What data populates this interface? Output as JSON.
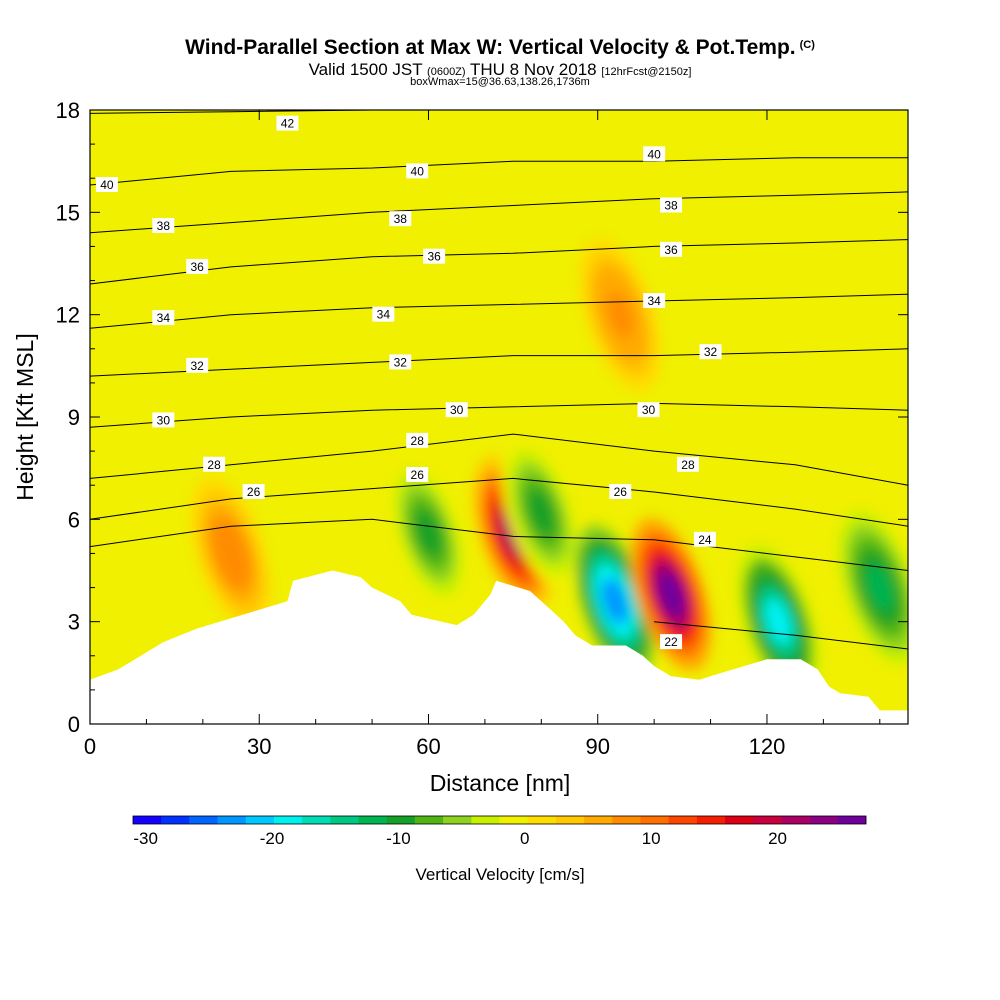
{
  "title": {
    "main": "Wind-Parallel Section at Max W: Vertical Velocity & Pot.Temp.",
    "copyright": "(C)",
    "valid_prefix": "Valid 1500 JST",
    "valid_z": "(0600Z)",
    "valid_date": "THU 8 Nov 2018",
    "forecast": "[12hrFcst@2150z]",
    "box": "boxWmax=15@36.63,138.26,1736m"
  },
  "chart_data": {
    "type": "heatmap",
    "xlabel": "Distance [nm]",
    "ylabel": "Height [Kft MSL]",
    "xlim": [
      0,
      145
    ],
    "ylim": [
      0,
      18
    ],
    "x_ticks": [
      0,
      30,
      60,
      90,
      120
    ],
    "y_ticks": [
      0,
      3,
      6,
      9,
      12,
      15,
      18
    ],
    "colorbar": {
      "label": "Vertical Velocity [cm/s]",
      "ticks": [
        -30,
        -20,
        -10,
        0,
        10,
        20
      ],
      "range": [
        -31,
        27
      ],
      "colors": [
        "#1400ff",
        "#0032ff",
        "#0064ff",
        "#0096ff",
        "#00c8ff",
        "#00f0f0",
        "#00dcb4",
        "#00c882",
        "#00b450",
        "#14a028",
        "#50b414",
        "#8cd21e",
        "#c8f000",
        "#f0f000",
        "#ffdc00",
        "#ffc800",
        "#ffaa00",
        "#ff8c00",
        "#ff6e00",
        "#ff4600",
        "#f51e00",
        "#dc0014",
        "#c8003c",
        "#aa0064",
        "#8c0082",
        "#6e009b"
      ]
    },
    "terrain_kft": [
      [
        0,
        1.3
      ],
      [
        5,
        1.6
      ],
      [
        8,
        1.9
      ],
      [
        10,
        2.1
      ],
      [
        13,
        2.4
      ],
      [
        16,
        2.6
      ],
      [
        19,
        2.8
      ],
      [
        35,
        3.6
      ],
      [
        36,
        4.2
      ],
      [
        43,
        4.5
      ],
      [
        48,
        4.3
      ],
      [
        50,
        4.0
      ],
      [
        55,
        3.6
      ],
      [
        57,
        3.2
      ],
      [
        65,
        2.9
      ],
      [
        68,
        3.2
      ],
      [
        71,
        3.8
      ],
      [
        72,
        4.2
      ],
      [
        78,
        3.9
      ],
      [
        82,
        3.3
      ],
      [
        84,
        3.0
      ],
      [
        86,
        2.6
      ],
      [
        89,
        2.3
      ],
      [
        95,
        2.3
      ],
      [
        98,
        2.0
      ],
      [
        100,
        1.7
      ],
      [
        103,
        1.4
      ],
      [
        108,
        1.3
      ],
      [
        112,
        1.5
      ],
      [
        120,
        1.9
      ],
      [
        126,
        1.9
      ],
      [
        129,
        1.6
      ],
      [
        131,
        1.1
      ],
      [
        133,
        0.9
      ],
      [
        138,
        0.8
      ],
      [
        140,
        0.4
      ],
      [
        145,
        0.4
      ]
    ],
    "theta_contours": [
      {
        "value": 42,
        "y": [
          17.9,
          17.95,
          18.0,
          18.0,
          18.0,
          18.0,
          18.0
        ],
        "label_at": [
          35,
          17.6
        ]
      },
      {
        "value": 40,
        "y": [
          15.8,
          16.2,
          16.3,
          16.5,
          16.5,
          16.6,
          16.6
        ],
        "labels_at": [
          [
            3,
            15.8
          ],
          [
            58,
            16.2
          ],
          [
            100,
            16.7
          ]
        ]
      },
      {
        "value": 38,
        "y": [
          14.4,
          14.7,
          15.0,
          15.2,
          15.4,
          15.5,
          15.6
        ],
        "labels_at": [
          [
            13,
            14.6
          ],
          [
            55,
            14.8
          ],
          [
            103,
            15.2
          ]
        ]
      },
      {
        "value": 36,
        "y": [
          12.9,
          13.4,
          13.7,
          13.8,
          14.0,
          14.1,
          14.2
        ],
        "labels_at": [
          [
            19,
            13.4
          ],
          [
            61,
            13.7
          ],
          [
            103,
            13.9
          ]
        ]
      },
      {
        "value": 34,
        "y": [
          11.6,
          12.0,
          12.2,
          12.3,
          12.4,
          12.5,
          12.6
        ],
        "labels_at": [
          [
            13,
            11.9
          ],
          [
            52,
            12.0
          ],
          [
            100,
            12.4
          ]
        ]
      },
      {
        "value": 32,
        "y": [
          10.2,
          10.4,
          10.6,
          10.8,
          10.8,
          10.9,
          11.0
        ],
        "labels_at": [
          [
            19,
            10.5
          ],
          [
            55,
            10.6
          ],
          [
            110,
            10.9
          ]
        ]
      },
      {
        "value": 30,
        "y": [
          8.7,
          9.0,
          9.2,
          9.3,
          9.4,
          9.3,
          9.2
        ],
        "labels_at": [
          [
            13,
            8.9
          ],
          [
            65,
            9.2
          ],
          [
            99,
            9.2
          ]
        ]
      },
      {
        "value": 28,
        "y": [
          7.2,
          7.6,
          8.0,
          8.5,
          8.0,
          7.6,
          7.0
        ],
        "labels_at": [
          [
            22,
            7.6
          ],
          [
            58,
            8.3
          ],
          [
            106,
            7.6
          ]
        ]
      },
      {
        "value": 26,
        "y": [
          6.0,
          6.6,
          6.9,
          7.2,
          6.8,
          6.3,
          5.8
        ],
        "labels_at": [
          [
            29,
            6.8
          ],
          [
            58,
            7.3
          ],
          [
            94,
            6.8
          ]
        ]
      },
      {
        "value": 24,
        "y": [
          5.2,
          5.8,
          6.0,
          5.5,
          5.4,
          4.9,
          4.5
        ],
        "labels_at": [
          [
            109,
            5.4
          ]
        ]
      },
      {
        "value": 22,
        "y": [
          null,
          null,
          null,
          null,
          3.0,
          2.6,
          2.2
        ],
        "labels_at": [
          [
            103,
            2.4
          ]
        ]
      }
    ],
    "velocity_features": [
      {
        "x": 75,
        "y": 5.6,
        "w": 21,
        "kind": "updraft"
      },
      {
        "x": 80,
        "y": 6.2,
        "w": -10,
        "kind": "downdraft"
      },
      {
        "x": 93,
        "y": 3.6,
        "w": -24,
        "kind": "downdraft"
      },
      {
        "x": 103,
        "y": 3.8,
        "w": 26,
        "kind": "updraft"
      },
      {
        "x": 122,
        "y": 3.0,
        "w": -18,
        "kind": "downdraft"
      },
      {
        "x": 60,
        "y": 5.6,
        "w": -10,
        "kind": "downdraft"
      },
      {
        "x": 25,
        "y": 5.0,
        "w": 9,
        "kind": "updraft"
      },
      {
        "x": 94,
        "y": 12.0,
        "w": 8,
        "kind": "updraft"
      },
      {
        "x": 140,
        "y": 4.0,
        "w": -12,
        "kind": "downdraft"
      }
    ]
  }
}
